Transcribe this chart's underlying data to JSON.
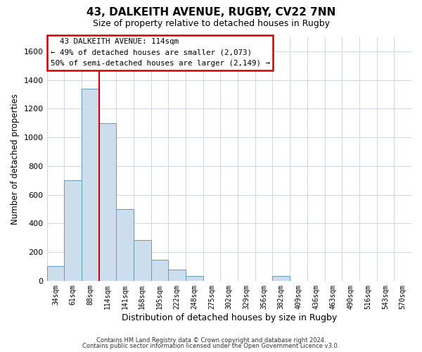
{
  "title": "43, DALKEITH AVENUE, RUGBY, CV22 7NN",
  "subtitle": "Size of property relative to detached houses in Rugby",
  "xlabel": "Distribution of detached houses by size in Rugby",
  "ylabel": "Number of detached properties",
  "bar_color": "#ccdded",
  "bar_edge_color": "#6699bb",
  "grid_color": "#d0d9e8",
  "background_color": "#ffffff",
  "bin_labels": [
    "34sqm",
    "61sqm",
    "88sqm",
    "114sqm",
    "141sqm",
    "168sqm",
    "195sqm",
    "222sqm",
    "248sqm",
    "275sqm",
    "302sqm",
    "329sqm",
    "356sqm",
    "382sqm",
    "409sqm",
    "436sqm",
    "463sqm",
    "490sqm",
    "516sqm",
    "543sqm",
    "570sqm"
  ],
  "bar_heights": [
    100,
    700,
    1340,
    1100,
    500,
    285,
    145,
    80,
    35,
    0,
    0,
    0,
    0,
    35,
    0,
    0,
    0,
    0,
    0,
    0,
    0
  ],
  "redline_bin": 3,
  "ylim": [
    0,
    1700
  ],
  "yticks": [
    0,
    200,
    400,
    600,
    800,
    1000,
    1200,
    1400,
    1600
  ],
  "annotation_title": "43 DALKEITH AVENUE: 114sqm",
  "annotation_line1": "← 49% of detached houses are smaller (2,073)",
  "annotation_line2": "50% of semi-detached houses are larger (2,149) →",
  "annotation_box_color": "#ffffff",
  "annotation_box_edge": "#cc0000",
  "footnote1": "Contains HM Land Registry data © Crown copyright and database right 2024.",
  "footnote2": "Contains public sector information licensed under the Open Government Licence v3.0."
}
